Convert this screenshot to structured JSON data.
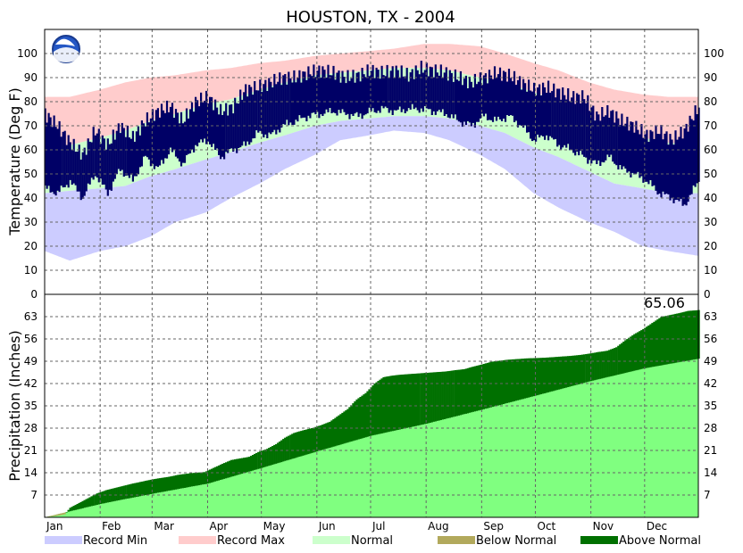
{
  "chart_data": {
    "type": "area",
    "title": "HOUSTON, TX - 2004",
    "months": [
      "Jan",
      "Feb",
      "Mar",
      "Apr",
      "May",
      "Jun",
      "Jul",
      "Aug",
      "Sep",
      "Oct",
      "Nov",
      "Dec"
    ],
    "temperature": {
      "ylabel": "Temperature (Deg F)",
      "ylim": [
        0,
        110
      ],
      "ticks": [
        0,
        10,
        20,
        30,
        40,
        50,
        60,
        70,
        80,
        90,
        100
      ],
      "grid": true,
      "normal_low": {
        "x": [
          1,
          15,
          32,
          46,
          60,
          74,
          91,
          105,
          121,
          135,
          152,
          166,
          182,
          196,
          213,
          227,
          244,
          258,
          274,
          288,
          305,
          319,
          335,
          349,
          366
        ],
        "y": [
          42,
          43,
          44,
          45,
          49,
          52,
          56,
          59,
          63,
          66,
          70,
          72,
          73,
          74,
          74,
          73,
          70,
          67,
          61,
          57,
          51,
          46,
          44,
          42,
          42
        ]
      },
      "normal_high": {
        "x": [
          1,
          15,
          32,
          46,
          60,
          74,
          91,
          105,
          121,
          135,
          152,
          166,
          182,
          196,
          213,
          227,
          244,
          258,
          274,
          288,
          305,
          319,
          335,
          349,
          366
        ],
        "y": [
          62,
          62,
          65,
          68,
          72,
          75,
          79,
          81,
          85,
          88,
          91,
          92,
          93,
          94,
          94,
          93,
          90,
          88,
          84,
          80,
          73,
          70,
          65,
          63,
          62
        ]
      },
      "record_min": {
        "x": [
          1,
          15,
          32,
          46,
          60,
          74,
          91,
          105,
          121,
          135,
          152,
          166,
          182,
          196,
          213,
          227,
          244,
          258,
          274,
          288,
          305,
          319,
          335,
          349,
          366
        ],
        "y": [
          18,
          14,
          18,
          20,
          24,
          30,
          34,
          40,
          46,
          52,
          58,
          64,
          66,
          68,
          67,
          64,
          58,
          52,
          42,
          36,
          30,
          26,
          20,
          18,
          16
        ]
      },
      "record_max": {
        "x": [
          1,
          15,
          32,
          46,
          60,
          74,
          91,
          105,
          121,
          135,
          152,
          166,
          182,
          196,
          213,
          227,
          244,
          258,
          274,
          288,
          305,
          319,
          335,
          349,
          366
        ],
        "y": [
          82,
          82,
          85,
          88,
          90,
          91,
          93,
          94,
          96,
          97,
          99,
          100,
          101,
          102,
          104,
          104,
          103,
          100,
          96,
          93,
          88,
          85,
          83,
          82,
          82
        ]
      },
      "observed_high": {
        "x": [
          1,
          8,
          15,
          22,
          29,
          36,
          43,
          50,
          57,
          64,
          71,
          78,
          85,
          92,
          99,
          106,
          113,
          120,
          127,
          134,
          141,
          148,
          155,
          162,
          169,
          176,
          183,
          190,
          197,
          204,
          211,
          218,
          225,
          232,
          239,
          246,
          253,
          260,
          267,
          274,
          281,
          288,
          295,
          302,
          309,
          316,
          323,
          330,
          337,
          344,
          351,
          358,
          366
        ],
        "y": [
          75,
          70,
          63,
          58,
          68,
          62,
          70,
          65,
          72,
          76,
          78,
          72,
          80,
          82,
          76,
          78,
          85,
          86,
          88,
          90,
          90,
          92,
          93,
          92,
          90,
          91,
          93,
          92,
          93,
          91,
          94,
          93,
          92,
          90,
          88,
          90,
          92,
          91,
          88,
          85,
          86,
          84,
          82,
          82,
          74,
          76,
          72,
          70,
          66,
          68,
          64,
          68,
          78
        ]
      },
      "observed_low": {
        "x": [
          1,
          8,
          15,
          22,
          29,
          36,
          43,
          50,
          57,
          64,
          71,
          78,
          85,
          92,
          99,
          106,
          113,
          120,
          127,
          134,
          141,
          148,
          155,
          162,
          169,
          176,
          183,
          190,
          197,
          204,
          211,
          218,
          225,
          232,
          239,
          246,
          253,
          260,
          267,
          274,
          281,
          288,
          295,
          302,
          309,
          316,
          323,
          330,
          337,
          344,
          351,
          358,
          366
        ],
        "y": [
          42,
          40,
          45,
          38,
          48,
          40,
          50,
          45,
          55,
          50,
          58,
          52,
          60,
          62,
          55,
          58,
          60,
          65,
          64,
          68,
          70,
          72,
          73,
          74,
          73,
          72,
          74,
          75,
          74,
          75,
          75,
          74,
          73,
          70,
          68,
          72,
          70,
          72,
          68,
          62,
          64,
          60,
          58,
          55,
          52,
          55,
          50,
          48,
          45,
          40,
          38,
          35,
          45
        ]
      },
      "observed_color": "#000066"
    },
    "precipitation": {
      "ylabel": "Precipitation (Inches)",
      "ylim": [
        0,
        70
      ],
      "ticks": [
        7,
        14,
        21,
        28,
        35,
        42,
        49,
        56,
        63
      ],
      "grid": true,
      "total_label": "65.06",
      "normal_cum": {
        "x": [
          1,
          32,
          61,
          92,
          122,
          153,
          183,
          214,
          245,
          275,
          306,
          336,
          366
        ],
        "y": [
          0,
          4.2,
          7.4,
          10.6,
          15.5,
          20.7,
          25.6,
          29.4,
          33.8,
          38.2,
          42.8,
          46.8,
          49.8
        ]
      },
      "observed_cum": {
        "x": [
          1,
          5,
          10,
          12,
          15,
          20,
          25,
          30,
          35,
          40,
          45,
          50,
          55,
          60,
          65,
          70,
          75,
          80,
          85,
          90,
          95,
          100,
          105,
          110,
          115,
          120,
          125,
          130,
          135,
          140,
          145,
          150,
          155,
          160,
          165,
          170,
          175,
          180,
          185,
          190,
          195,
          200,
          205,
          210,
          215,
          220,
          225,
          230,
          235,
          240,
          245,
          250,
          255,
          260,
          265,
          270,
          275,
          280,
          285,
          290,
          295,
          300,
          305,
          310,
          315,
          320,
          325,
          330,
          335,
          340,
          345,
          350,
          355,
          360,
          366
        ],
        "y": [
          0,
          0.3,
          0.7,
          1,
          3,
          4.5,
          6,
          7.5,
          8.5,
          9.2,
          9.9,
          10.6,
          11.2,
          11.8,
          12.3,
          12.7,
          13.3,
          13.7,
          14,
          14.2,
          15.5,
          16.8,
          18,
          18.5,
          19,
          20.5,
          21.5,
          23,
          25,
          26.5,
          27.3,
          28,
          28.9,
          30,
          32,
          34,
          37,
          39,
          42,
          44,
          44.5,
          44.8,
          45,
          45.2,
          45.4,
          45.6,
          45.8,
          46.2,
          46.5,
          47.3,
          48,
          48.8,
          49.2,
          49.5,
          49.7,
          49.9,
          50,
          50.1,
          50.3,
          50.5,
          50.7,
          51,
          51.4,
          51.9,
          52.3,
          53.4,
          55.6,
          57.5,
          59.1,
          61,
          62.9,
          63.5,
          64.1,
          64.8,
          65.06
        ]
      },
      "below_color": "#B2A95C",
      "above_color": "#007000",
      "normal_fill_color": "#80FF80"
    },
    "legend": [
      {
        "label": "Record Min",
        "color": "#CCCCFF"
      },
      {
        "label": "Record Max",
        "color": "#FFCCCC"
      },
      {
        "label": "Normal",
        "color": "#CCFFCC"
      },
      {
        "label": "Below Normal",
        "color": "#B2A95C"
      },
      {
        "label": "Above Normal",
        "color": "#007000"
      }
    ]
  }
}
